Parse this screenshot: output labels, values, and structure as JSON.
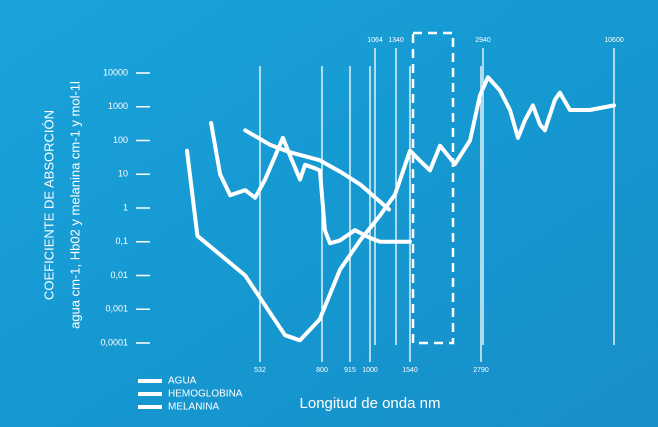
{
  "chart_data": {
    "type": "line",
    "y_title": "COEFICIENTE DE ABSORCIÓN",
    "y_subtitle": "agua cm-1, Hb02 y melanina cm-1 y mol-1l",
    "x_label": "Longitud de onda nm",
    "ylog": true,
    "ylim": [
      0.0001,
      10000
    ],
    "yticks": [
      10000,
      1000,
      100,
      10,
      1,
      {
        "value": 0.1,
        "label": "0,1"
      },
      {
        "value": 0.01,
        "label": "0,01"
      },
      {
        "value": 0.001,
        "label": "0,001"
      },
      {
        "value": 0.0001,
        "label": "0,0001"
      }
    ],
    "xlim": [
      250,
      10600
    ],
    "xticks": [
      532,
      800,
      915,
      1000,
      1540,
      2790
    ],
    "xticks_top": [
      1064,
      1340,
      2940,
      10600
    ],
    "series": [
      {
        "name": "AGUA",
        "color": "#ffffff",
        "x": [
          250,
          290,
          475,
          640,
          705,
          790,
          874,
          958,
          1130,
          1327,
          1540,
          1716,
          1892,
          2068,
          2332,
          2596,
          2772,
          3232,
          3933,
          4517,
          4984,
          5393,
          5860,
          6269,
          6561,
          7145,
          7437,
          8021,
          9190,
          10600
        ],
        "values": [
          50,
          0.15,
          0.01,
          0.00017,
          0.00012,
          0.0005,
          0.015,
          0.11,
          0.6,
          2.5,
          50,
          25,
          13,
          70,
          20,
          100,
          2200,
          7500,
          3000,
          800,
          120,
          400,
          1100,
          300,
          200,
          1600,
          2600,
          800,
          800,
          1100
        ]
      },
      {
        "name": "HEMOGLOBINA",
        "color": "#ffffff",
        "x": [
          343,
          378,
          417,
          475,
          513,
          554,
          631,
          661,
          705,
          727,
          770,
          791,
          812,
          833,
          874,
          936,
          1000,
          1130,
          1540
        ],
        "values": [
          330,
          10,
          2.4,
          3.4,
          2,
          7,
          120,
          37,
          7,
          19,
          15,
          13,
          0.22,
          0.09,
          0.11,
          0.22,
          0.13,
          0.1,
          0.1
        ]
      },
      {
        "name": "MELANINA",
        "color": "#ffffff",
        "x": [
          475,
          575,
          661,
          790,
          874,
          958,
          1248
        ],
        "values": [
          200,
          75,
          45,
          26,
          12,
          5,
          0.9
        ]
      }
    ]
  }
}
